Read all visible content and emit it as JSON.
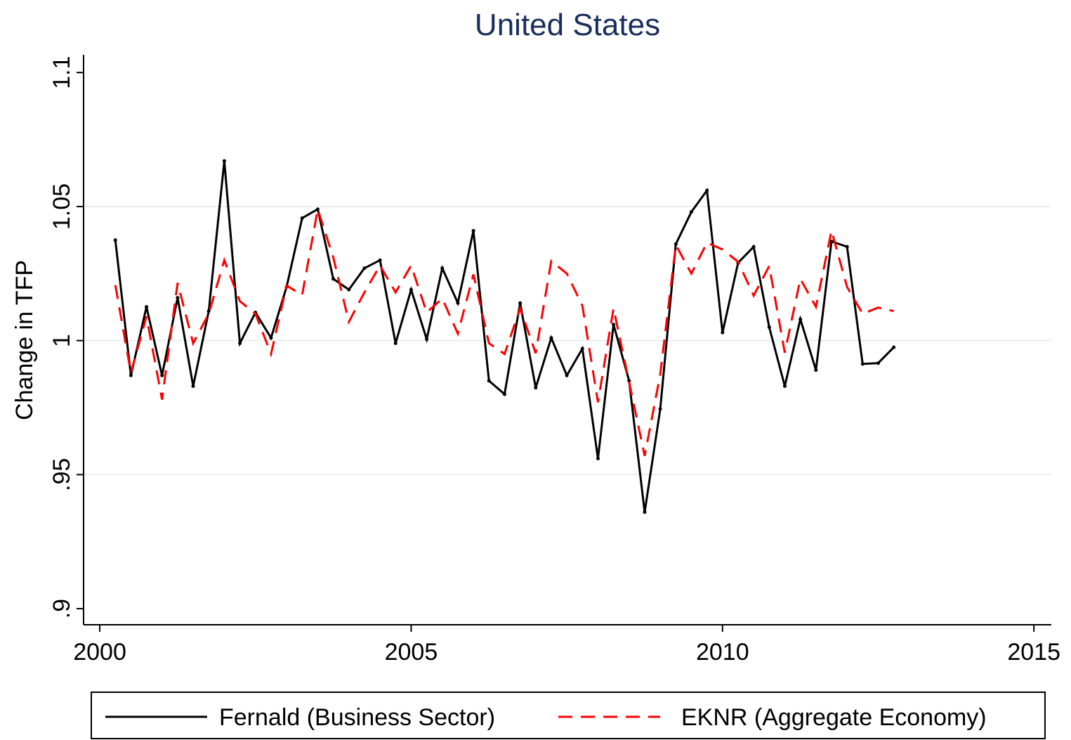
{
  "chart_data": {
    "type": "line",
    "title": "United States",
    "y_label": "Change in TFP",
    "x": [
      2000.25,
      2000.5,
      2000.75,
      2001,
      2001.25,
      2001.5,
      2001.75,
      2002,
      2002.25,
      2002.5,
      2002.75,
      2003,
      2003.25,
      2003.5,
      2003.75,
      2004,
      2004.25,
      2004.5,
      2004.75,
      2005,
      2005.25,
      2005.5,
      2005.75,
      2006,
      2006.25,
      2006.5,
      2006.75,
      2007,
      2007.25,
      2007.5,
      2007.75,
      2008,
      2008.25,
      2008.5,
      2008.75,
      2009,
      2009.25,
      2009.5,
      2009.75,
      2010,
      2010.25,
      2010.5,
      2010.75,
      2011,
      2011.25,
      2011.5,
      2011.75,
      2012,
      2012.25,
      2012.5,
      2012.75
    ],
    "series": [
      {
        "name": "Fernald (Business Sector)",
        "color": "#000000",
        "dash": false,
        "markers": true,
        "values": [
          1.0375,
          0.987,
          1.0126,
          0.987,
          1.016,
          0.983,
          1.011,
          1.067,
          0.999,
          1.0105,
          1.001,
          1.02,
          1.0457,
          1.049,
          1.023,
          1.019,
          1.027,
          1.03,
          0.999,
          1.019,
          1.0005,
          1.027,
          1.014,
          1.041,
          0.985,
          0.98,
          1.014,
          0.9824,
          1.001,
          0.987,
          0.997,
          0.956,
          1.006,
          0.985,
          0.936,
          0.9745,
          1.036,
          1.048,
          1.056,
          1.003,
          1.029,
          1.035,
          1.005,
          0.983,
          1.008,
          0.989,
          1.037,
          1.035,
          0.9913,
          0.9916,
          0.9975
        ]
      },
      {
        "name": "EKNR (Aggregate Economy)",
        "color": "#ff0000",
        "dash": true,
        "markers": false,
        "values": [
          1.0207,
          0.988,
          1.009,
          0.978,
          1.0215,
          0.999,
          1.01,
          1.03,
          1.0147,
          1.01,
          0.995,
          1.0205,
          1.017,
          1.049,
          1.031,
          1.007,
          1.018,
          1.028,
          1.018,
          1.028,
          1.0105,
          1.0157,
          1.0026,
          1.0247,
          0.999,
          0.995,
          1.012,
          0.9953,
          1.0297,
          1.025,
          1.013,
          0.977,
          1.012,
          0.9845,
          0.957,
          0.9874,
          1.0357,
          1.025,
          1.0365,
          1.034,
          1.0294,
          1.0168,
          1.0278,
          0.9955,
          1.023,
          1.0126,
          1.041,
          1.02,
          1.01,
          1.0123,
          1.011
        ]
      }
    ],
    "xlim": [
      1999.74,
      2015.28
    ],
    "xticks": [
      2000,
      2005,
      2010,
      2015
    ],
    "ylim": [
      0.894,
      1.1066
    ],
    "yticks": [
      {
        "value": 0.9,
        "label": ".9"
      },
      {
        "value": 0.95,
        "label": ".95"
      },
      1,
      1.05,
      1.1
    ],
    "grid": true
  }
}
